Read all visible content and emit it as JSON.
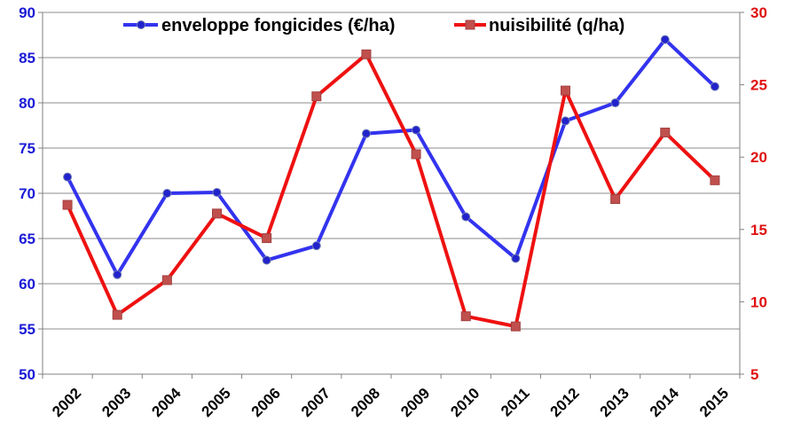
{
  "chart_data": {
    "type": "line",
    "categories": [
      "2002",
      "2003",
      "2004",
      "2005",
      "2006",
      "2007",
      "2008",
      "2009",
      "2010",
      "2011",
      "2012",
      "2013",
      "2014",
      "2015"
    ],
    "series": [
      {
        "name": "enveloppe fongicides (€/ha)",
        "axis": "left",
        "color": "#3333ee",
        "marker": "circle",
        "values": [
          71.8,
          61.0,
          70.0,
          70.1,
          62.6,
          64.2,
          76.6,
          77.0,
          67.4,
          62.8,
          78.0,
          80.0,
          87.0,
          81.8
        ]
      },
      {
        "name": "nuisibilité (q/ha)",
        "axis": "right",
        "color": "#ee1111",
        "marker": "square",
        "values": [
          16.7,
          9.1,
          11.5,
          16.1,
          14.4,
          24.2,
          27.1,
          20.2,
          9.0,
          8.3,
          24.6,
          17.1,
          21.7,
          18.4
        ]
      }
    ],
    "y_left": {
      "min": 50,
      "max": 90,
      "step": 5,
      "ticks": [
        "50",
        "55",
        "60",
        "65",
        "70",
        "75",
        "80",
        "85",
        "90"
      ],
      "color": "#1a1ad6"
    },
    "y_right": {
      "min": 5,
      "max": 30,
      "step": 5,
      "ticks": [
        "5",
        "10",
        "15",
        "20",
        "25",
        "30"
      ],
      "color": "#e01010"
    },
    "grid": "horizontal",
    "legend": "top-center"
  }
}
